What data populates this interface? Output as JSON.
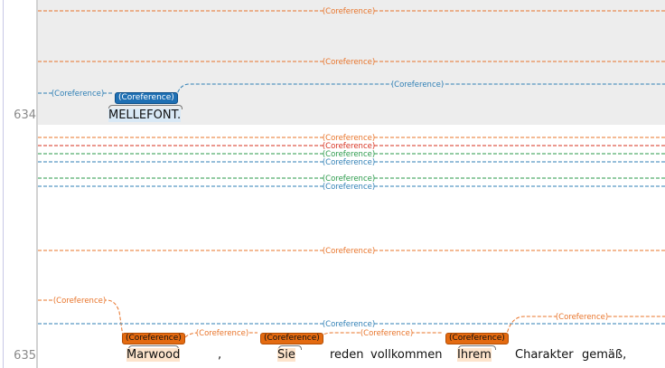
{
  "gutter": {
    "line_a": "634",
    "line_b": "635"
  },
  "relation_label": "(Coreference)",
  "sentence_634": {
    "tokens": [
      {
        "text": "MELLEFONT.",
        "tag": "(Coreference)",
        "tag_color": "#1e6fb3"
      }
    ]
  },
  "sentence_635": {
    "tokens": [
      {
        "text": "Marwood",
        "tag": "(Coreference)",
        "tag_color": "#e46a10"
      },
      {
        "text": ","
      },
      {
        "text": "Sie",
        "tag": "(Coreference)",
        "tag_color": "#e46a10"
      },
      {
        "text": "reden"
      },
      {
        "text": "vollkommen"
      },
      {
        "text": "Ihrem",
        "tag": "(Coreference)",
        "tag_color": "#e46a10"
      },
      {
        "text": "Charakter"
      },
      {
        "text": "gemäß,"
      }
    ]
  },
  "colors": {
    "orange": "#e8742a",
    "blue": "#2f7fb5",
    "red": "#d7301f",
    "green": "#2a9a4a",
    "band": "#ededed"
  }
}
